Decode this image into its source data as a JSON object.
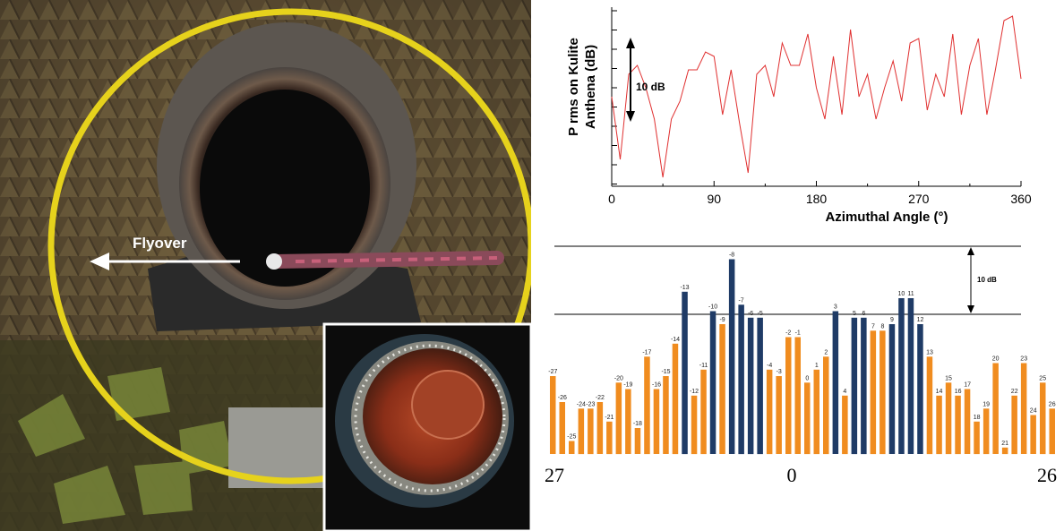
{
  "photo": {
    "flyover_label": "Flyover"
  },
  "chart_data": [
    {
      "type": "line",
      "title": "",
      "xlabel": "Azimuthal Angle (°)",
      "ylabel_line1": "P rms on Kulite",
      "ylabel_line2": "Anthena (dB)",
      "xticks": [
        "0",
        "90",
        "180",
        "270",
        "360"
      ],
      "xlim": [
        0,
        360
      ],
      "ylim": [
        0,
        40
      ],
      "annotation": "10 dB",
      "series": [
        {
          "color": "#e03030",
          "x": [
            0,
            7.5,
            15,
            22.5,
            30,
            37.5,
            45,
            52.5,
            60,
            67.5,
            75,
            82.5,
            90,
            97.5,
            105,
            112.5,
            120,
            127.5,
            135,
            142.5,
            150,
            157.5,
            165,
            172.5,
            180,
            187.5,
            195,
            202.5,
            210,
            217.5,
            225,
            232.5,
            240,
            247.5,
            255,
            262.5,
            270,
            277.5,
            285,
            292.5,
            300,
            307.5,
            315,
            322.5,
            330,
            337.5,
            345,
            352.5,
            360
          ],
          "y": [
            20,
            6,
            25,
            27,
            22,
            15,
            2,
            15,
            19,
            26,
            26,
            30,
            29,
            16,
            26,
            14,
            3,
            25,
            27,
            20,
            32,
            27,
            27,
            34,
            22,
            15,
            29,
            16,
            35,
            20,
            25,
            15,
            22,
            28,
            19,
            32,
            33,
            17,
            25,
            20,
            34,
            16,
            27,
            33,
            16,
            26,
            37,
            38,
            24
          ]
        }
      ]
    },
    {
      "type": "bar",
      "categories": [
        "-27",
        "-26",
        "-25",
        "-24",
        "-23",
        "-22",
        "-21",
        "-20",
        "-19",
        "-18",
        "-17",
        "-16",
        "-15",
        "-14",
        "-13",
        "-12",
        "-11",
        "-10",
        "-9",
        "-8",
        "-7",
        "-6",
        "-5",
        "-4",
        "-3",
        "-2",
        "-1",
        "0",
        "1",
        "2",
        "3",
        "4",
        "5",
        "6",
        "7",
        "8",
        "9",
        "10",
        "11",
        "12",
        "13",
        "14",
        "15",
        "16",
        "17",
        "18",
        "19",
        "20",
        "21",
        "22",
        "23",
        "24",
        "25",
        "26"
      ],
      "values": [
        12,
        8,
        2,
        7,
        7,
        8,
        5,
        11,
        10,
        4,
        15,
        10,
        12,
        17,
        25,
        9,
        13,
        22,
        20,
        30,
        23,
        21,
        21,
        13,
        12,
        18,
        18,
        11,
        13,
        15,
        22,
        9,
        21,
        21,
        19,
        19,
        20,
        24,
        24,
        20,
        15,
        9,
        11,
        9,
        10,
        5,
        7,
        14,
        1,
        9,
        14,
        6,
        11,
        7
      ],
      "highlight_color": "#1f3b66",
      "normal_color": "#f08c1f",
      "highlighted": [
        "-13",
        "-10",
        "-8",
        "-7",
        "-6",
        "-5",
        "3",
        "5",
        "6",
        "9",
        "10",
        "11",
        "12"
      ],
      "ylim": [
        0,
        32
      ],
      "reference_lines": [
        30,
        20
      ],
      "annotation": "10 dB",
      "axis_labels": {
        "left": "27",
        "center": "0",
        "right": "26"
      }
    }
  ]
}
